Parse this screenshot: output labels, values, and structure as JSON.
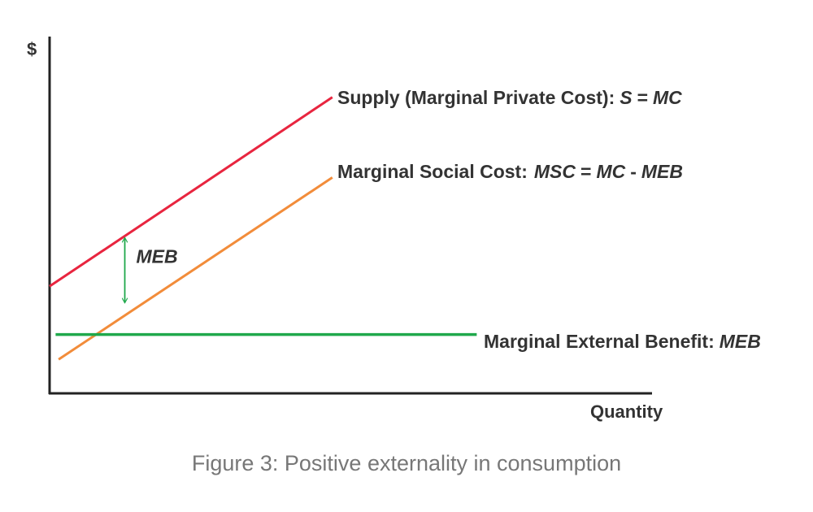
{
  "chart_data": {
    "type": "line",
    "title": "",
    "ylabel": "$",
    "xlabel": "Quantity",
    "xlim": [
      0,
      10
    ],
    "ylim": [
      0,
      10
    ],
    "grid": false,
    "colors": {
      "supply": "#e8253f",
      "msc": "#f28c3a",
      "meb": "#1fa84b",
      "axis": "#222222",
      "text": "#333333",
      "caption": "#777777"
    },
    "series": [
      {
        "name": "Supply (Marginal Private Cost)",
        "name_suffix": ":",
        "formula": "S = MC",
        "formula_parts": {
          "a": "S",
          "eq": "=",
          "b": "MC"
        },
        "x": [
          0,
          4.7
        ],
        "y": [
          3.0,
          8.3
        ]
      },
      {
        "name": "Marginal Social Cost:",
        "formula": "MSC = MC - MEB",
        "formula_parts": {
          "a": "MSC",
          "eq": "=",
          "b": "MC",
          "minus": "-",
          "c": "MEB"
        },
        "x": [
          0.15,
          4.7
        ],
        "y": [
          0.95,
          6.05
        ]
      },
      {
        "name": "Marginal External Benefit:",
        "formula": "MEB",
        "x": [
          0.1,
          7.1
        ],
        "y": [
          1.65,
          1.65
        ]
      }
    ],
    "annotations": [
      {
        "text": "MEB",
        "type": "double-arrow",
        "x": 1.25,
        "y_top": 4.35,
        "y_bottom": 2.55
      }
    ]
  },
  "caption": "Figure 3: Positive externality in consumption"
}
